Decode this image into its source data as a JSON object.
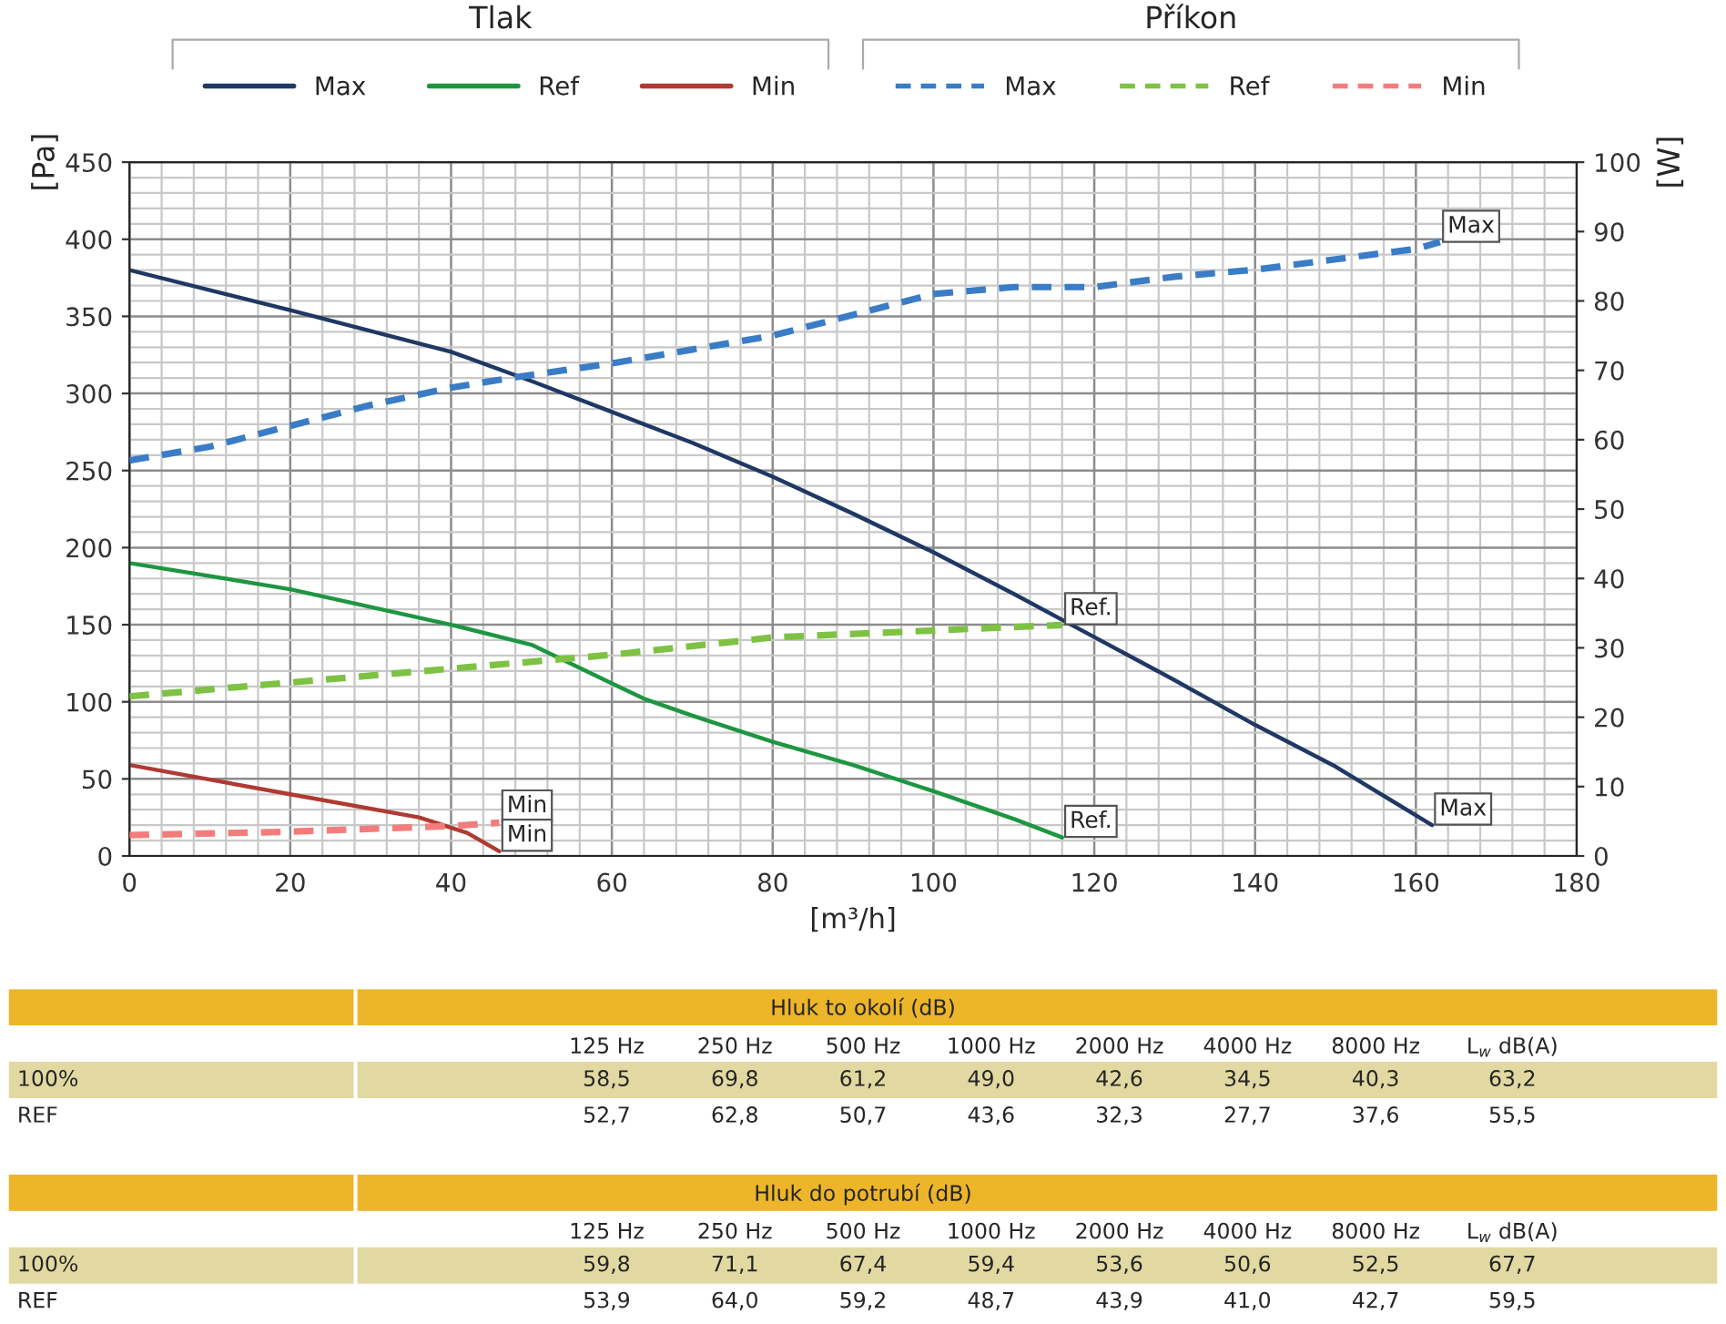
{
  "chart_data": [
    {
      "type": "line",
      "xlabel": "[m³/h]",
      "ylabel": "[Pa]",
      "y2label": "[W]",
      "xlim": [
        0,
        180
      ],
      "xticks": [
        0,
        20,
        40,
        60,
        80,
        100,
        120,
        140,
        160,
        180
      ],
      "ylim": [
        0,
        450
      ],
      "yticks": [
        0,
        50,
        100,
        150,
        200,
        250,
        300,
        350,
        400,
        450
      ],
      "y2lim": [
        0,
        100
      ],
      "y2ticks": [
        0,
        10,
        20,
        30,
        40,
        50,
        60,
        70,
        80,
        90,
        100
      ],
      "grid": true,
      "legend": "top",
      "marker": "none",
      "series": [
        {
          "name": "Max",
          "color": "#1f3864",
          "line_style": "solid",
          "x": [
            0,
            20,
            40,
            50,
            60,
            70,
            80,
            90,
            100,
            110,
            120,
            130,
            140,
            150,
            162
          ],
          "values": [
            380,
            354,
            327,
            308,
            288,
            268,
            246,
            222,
            197,
            170,
            142,
            114,
            85,
            58,
            20
          ]
        },
        {
          "name": "Ref",
          "color": "#1e9641",
          "line_style": "solid",
          "x": [
            0,
            20,
            40,
            50,
            56,
            60,
            64,
            70,
            80,
            90,
            100,
            110,
            116
          ],
          "values": [
            190,
            173,
            150,
            137,
            122,
            112,
            102,
            91,
            74,
            59,
            42,
            24,
            12
          ]
        },
        {
          "name": "Min",
          "color": "#b03a33",
          "line_style": "solid",
          "x": [
            0,
            20,
            36,
            42,
            46
          ],
          "values": [
            59,
            40,
            25,
            15,
            3
          ]
        },
        {
          "name": "Max",
          "color": "#3a7cc6",
          "line_style": "dashed",
          "axis": "y2",
          "x": [
            0,
            10,
            20,
            30,
            40,
            48,
            60,
            70,
            80,
            90,
            100,
            110,
            120,
            130,
            140,
            150,
            160,
            163
          ],
          "values": [
            57,
            59,
            62,
            65,
            67.5,
            69,
            71,
            73,
            75,
            78,
            81,
            82,
            82,
            83.5,
            84.5,
            86,
            87.5,
            88.5
          ]
        },
        {
          "name": "Ref",
          "color": "#7dc242",
          "line_style": "dashed",
          "axis": "y2",
          "x": [
            0,
            20,
            40,
            60,
            80,
            100,
            116
          ],
          "values": [
            23,
            25,
            27,
            29,
            31.5,
            32.5,
            33.3
          ]
        },
        {
          "name": "Min",
          "color": "#f47c7c",
          "line_style": "dashed",
          "axis": "y2",
          "x": [
            0,
            20,
            40,
            46
          ],
          "values": [
            3,
            3.5,
            4.3,
            4.8
          ]
        }
      ],
      "annotations": [
        "Tlak",
        "Příkon",
        {
          "text": "Max",
          "x": 163,
          "y": 398
        },
        {
          "text": "Ref.",
          "x": 116,
          "y": 150
        },
        {
          "text": "Min",
          "x": 46,
          "y": 22
        },
        {
          "text": "Max",
          "x": 162,
          "y": 20
        },
        {
          "text": "Ref.",
          "x": 116,
          "y": 12
        },
        {
          "text": "Min",
          "x": 46,
          "y": 3
        }
      ]
    },
    {
      "type": "other",
      "title": "Hluk to okolí (dB)",
      "categories": [
        "125 Hz",
        "250 Hz",
        "500 Hz",
        "1000 Hz",
        "2000 Hz",
        "4000 Hz",
        "8000 Hz",
        "L$_{w}$ dB(A)"
      ],
      "y_categories": [
        "100%",
        "REF"
      ],
      "cell_labels": [
        [
          "58,5",
          "69,8",
          "61,2",
          "49,0",
          "42,6",
          "34,5",
          "40,3",
          "63,2"
        ],
        [
          "52,7",
          "62,8",
          "50,7",
          "43,6",
          "32,3",
          "27,7",
          "37,6",
          "55,5"
        ]
      ]
    },
    {
      "type": "other",
      "title": "Hluk do potrubí (dB)",
      "categories": [
        "125 Hz",
        "250 Hz",
        "500 Hz",
        "1000 Hz",
        "2000 Hz",
        "4000 Hz",
        "8000 Hz",
        "L$_{w}$ dB(A)"
      ],
      "y_categories": [
        "100%",
        "REF"
      ],
      "cell_labels": [
        [
          "59,8",
          "71,1",
          "67,4",
          "59,4",
          "53,6",
          "50,6",
          "52,5",
          "67,7"
        ],
        [
          "53,9",
          "64,0",
          "59,2",
          "48,7",
          "43,9",
          "41,0",
          "42,7",
          "59,5"
        ]
      ]
    }
  ]
}
